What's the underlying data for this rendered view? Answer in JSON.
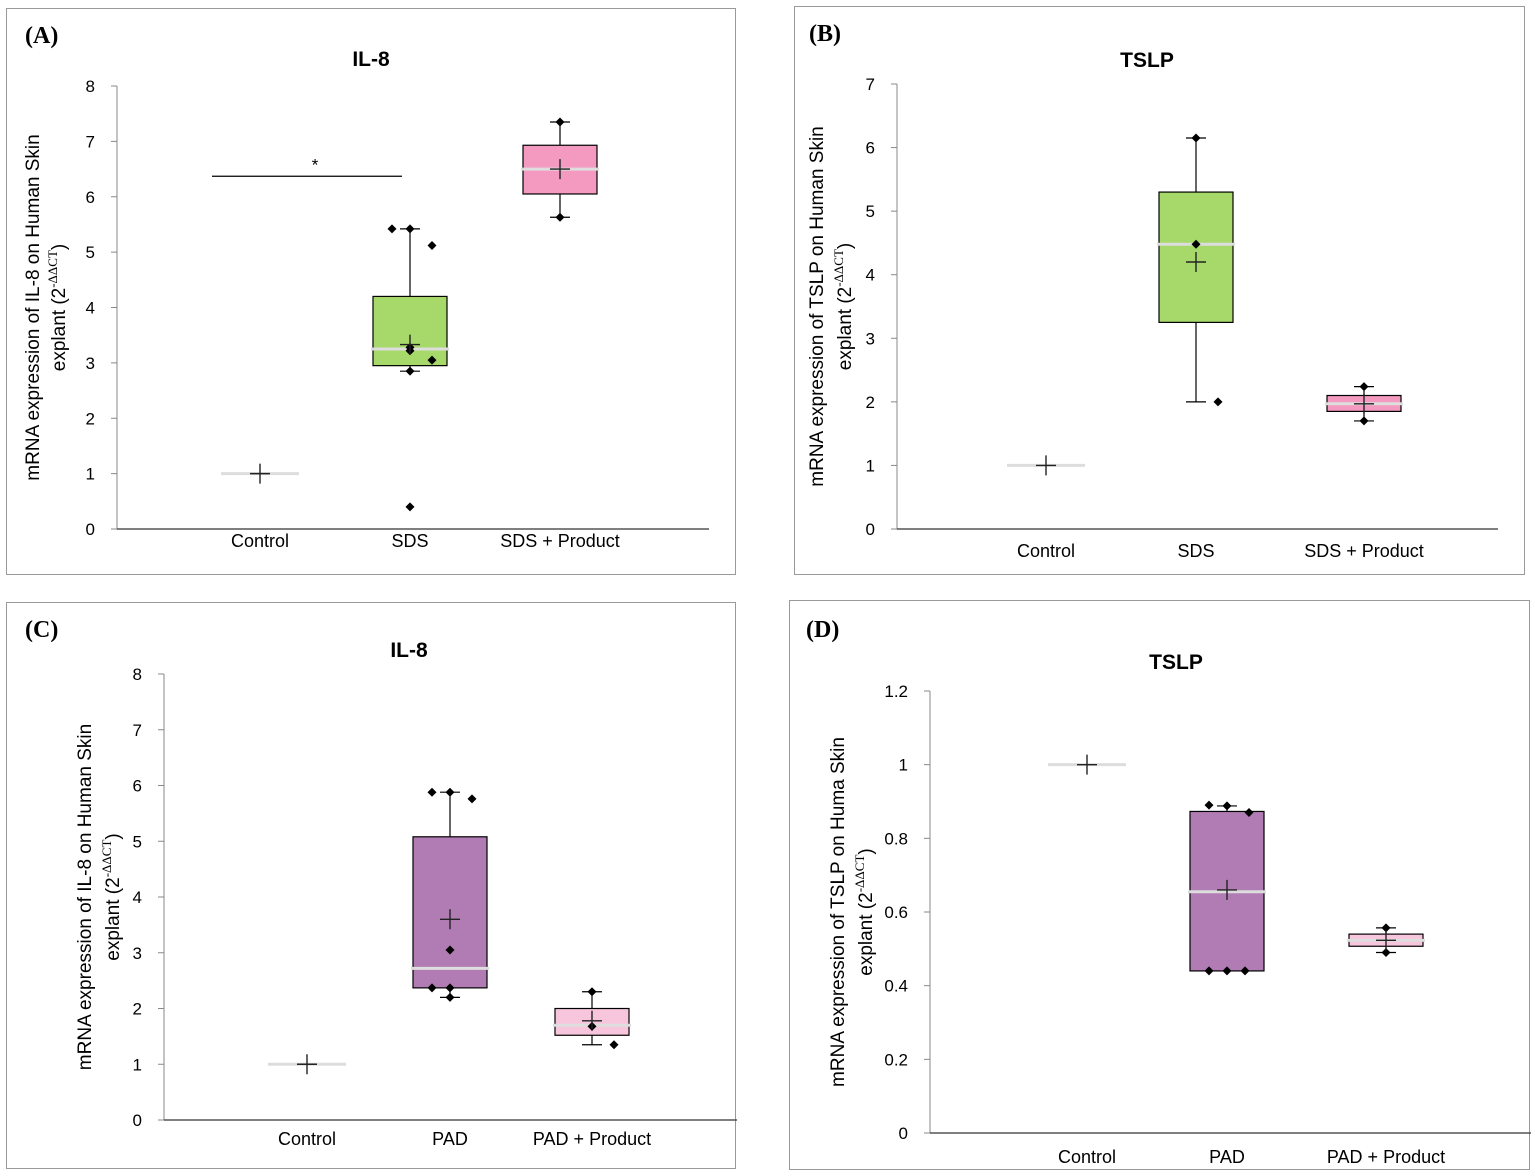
{
  "chart_data": [
    {
      "panel": "(A)",
      "type": "box",
      "title": "IL-8",
      "ylabel_line1": "mRNA expression of IL-8 on Human Skin",
      "ylabel_line2": "explant (2",
      "ylabel_sup": "-ΔΔCT",
      "ylabel_end": ")",
      "ylim": [
        0,
        8
      ],
      "yticks": [
        "0",
        "1",
        "2",
        "3",
        "4",
        "5",
        "6",
        "7",
        "8"
      ],
      "categories": [
        "Control",
        "SDS",
        "SDS + Product"
      ],
      "box_colors": [
        "#ffffff",
        "#a6d96a",
        "#f49ac1"
      ],
      "boxes": [
        {
          "min": 1.0,
          "q1": 1.0,
          "median": 1.0,
          "q3": 1.0,
          "max": 1.0,
          "mean": 1.0,
          "points": []
        },
        {
          "min": 2.85,
          "q1": 2.95,
          "median": 3.25,
          "q3": 4.2,
          "max": 5.42,
          "mean": 3.33,
          "points": [
            5.42,
            5.42,
            5.12,
            3.22,
            3.28,
            3.05,
            2.85,
            0.4
          ]
        },
        {
          "min": 5.63,
          "q1": 6.05,
          "median": 6.5,
          "q3": 6.93,
          "max": 7.35,
          "mean": 6.5,
          "points": [
            7.35,
            5.63
          ]
        }
      ],
      "annotation": {
        "text": "*",
        "from": 0,
        "to": 1,
        "y": 6.37
      }
    },
    {
      "panel": "(B)",
      "type": "box",
      "title": "TSLP",
      "ylabel_line1": "mRNA expression of TSLP on Human Skin",
      "ylabel_line2": "explant (2",
      "ylabel_sup": "-ΔΔCT",
      "ylabel_end": ")",
      "ylim": [
        0,
        7
      ],
      "yticks": [
        "0",
        "1",
        "2",
        "3",
        "4",
        "5",
        "6",
        "7"
      ],
      "categories": [
        "Control",
        "SDS",
        "SDS + Product"
      ],
      "box_colors": [
        "#ffffff",
        "#a6d96a",
        "#f49ac1"
      ],
      "boxes": [
        {
          "min": 1.0,
          "q1": 1.0,
          "median": 1.0,
          "q3": 1.0,
          "max": 1.0,
          "mean": 1.0,
          "points": []
        },
        {
          "min": 2.0,
          "q1": 3.25,
          "median": 4.48,
          "q3": 5.3,
          "max": 6.15,
          "mean": 4.2,
          "points": [
            6.15,
            4.48,
            2.0
          ]
        },
        {
          "min": 1.7,
          "q1": 1.85,
          "median": 1.97,
          "q3": 2.1,
          "max": 2.24,
          "mean": 1.97,
          "points": [
            2.24,
            1.7
          ]
        }
      ]
    },
    {
      "panel": "(C)",
      "type": "box",
      "title": "IL-8",
      "ylabel_line1": "mRNA expression of IL-8 on Human Skin",
      "ylabel_line2": "explant (2",
      "ylabel_sup": "-ΔΔCT",
      "ylabel_end": ")",
      "ylim": [
        0,
        8
      ],
      "yticks": [
        "0",
        "1",
        "2",
        "3",
        "4",
        "5",
        "6",
        "7",
        "8"
      ],
      "categories": [
        "Control",
        "PAD",
        "PAD + Product"
      ],
      "box_colors": [
        "#ffffff",
        "#b07cb3",
        "#f7c6dd"
      ],
      "boxes": [
        {
          "min": 1.0,
          "q1": 1.0,
          "median": 1.0,
          "q3": 1.0,
          "max": 1.0,
          "mean": 1.0,
          "points": []
        },
        {
          "min": 2.2,
          "q1": 2.37,
          "median": 2.72,
          "q3": 5.08,
          "max": 5.88,
          "mean": 3.6,
          "points": [
            5.88,
            5.88,
            5.76,
            3.05,
            2.37,
            2.37,
            2.2
          ]
        },
        {
          "min": 1.35,
          "q1": 1.52,
          "median": 1.7,
          "q3": 2.0,
          "max": 2.3,
          "mean": 1.78,
          "points": [
            2.3,
            1.68,
            1.35
          ]
        }
      ]
    },
    {
      "panel": "(D)",
      "type": "box",
      "title": "TSLP",
      "ylabel_line1": "mRNA expression of TSLP on Huma Skin",
      "ylabel_line2": "explant (2",
      "ylabel_sup": "-ΔΔCT",
      "ylabel_end": ")",
      "ylim": [
        0,
        1.2
      ],
      "yticks": [
        "0",
        "0.2",
        "0.4",
        "0.6",
        "0.8",
        "1",
        "1.2"
      ],
      "categories": [
        "Control",
        "PAD",
        "PAD + Product"
      ],
      "box_colors": [
        "#ffffff",
        "#b07cb3",
        "#f7c6dd"
      ],
      "boxes": [
        {
          "min": 1.0,
          "q1": 1.0,
          "median": 1.0,
          "q3": 1.0,
          "max": 1.0,
          "mean": 1.0,
          "points": []
        },
        {
          "min": 0.44,
          "q1": 0.44,
          "median": 0.655,
          "q3": 0.873,
          "max": 0.888,
          "mean": 0.66,
          "points": [
            0.89,
            0.888,
            0.87,
            0.44,
            0.44,
            0.44
          ]
        },
        {
          "min": 0.49,
          "q1": 0.507,
          "median": 0.523,
          "q3": 0.54,
          "max": 0.557,
          "mean": 0.523,
          "points": [
            0.557,
            0.49
          ]
        }
      ]
    }
  ]
}
